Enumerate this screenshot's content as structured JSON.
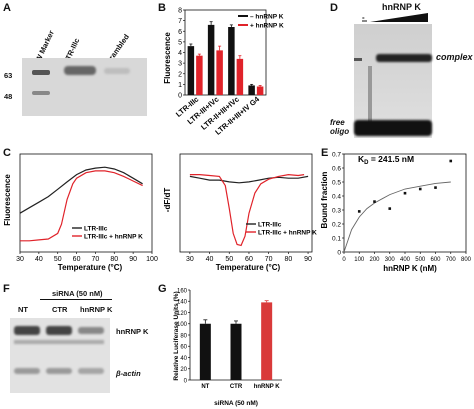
{
  "panels": {
    "A": {
      "label": "A",
      "lanes": [
        "MW Marker",
        "LTR-IIIc",
        "Scrambled"
      ],
      "markers": [
        "63",
        "48"
      ]
    },
    "B": {
      "label": "B",
      "ylabel": "Fluorescence",
      "chart_data": {
        "type": "bar",
        "categories": [
          "LTR-IIIc",
          "LTR-III+IVc",
          "LTR-II+III+IVc",
          "LTR-II+III+IV G4"
        ],
        "series": [
          {
            "name": "– hnRNP K",
            "color": "#111111",
            "values": [
              4.6,
              6.6,
              6.4,
              0.9
            ]
          },
          {
            "name": "+ hnRNP K",
            "color": "#e0232a",
            "values": [
              3.7,
              4.2,
              3.4,
              0.8
            ]
          }
        ],
        "errors": [
          [
            0.2,
            0.3,
            0.2,
            0.1
          ],
          [
            0.15,
            0.4,
            0.3,
            0.1
          ]
        ],
        "ylim": [
          0,
          8
        ],
        "yticks": [
          "0",
          "1",
          "2",
          "3",
          "4",
          "5",
          "6",
          "7",
          "8"
        ],
        "legend_placement": "top-right"
      }
    },
    "C": {
      "label": "C",
      "left": {
        "ylabel": "Fluorescence",
        "xlabel": "Temperature (°C)",
        "xticks": [
          "30",
          "40",
          "50",
          "60",
          "70",
          "80",
          "90",
          "100"
        ],
        "legend": [
          "LTR-IIIc",
          "LTR-IIIc + hnRNP K"
        ],
        "chart_data": {
          "type": "line",
          "xlim": [
            30,
            100
          ],
          "series": [
            {
              "name": "LTR-IIIc",
              "color": "#222222",
              "x": [
                30,
                35,
                40,
                45,
                50,
                55,
                60,
                65,
                70,
                75,
                80,
                85,
                90,
                95
              ],
              "y": [
                0.4,
                0.46,
                0.52,
                0.58,
                0.66,
                0.74,
                0.82,
                0.87,
                0.89,
                0.9,
                0.88,
                0.84,
                0.78,
                0.72
              ]
            },
            {
              "name": "LTR-IIIc + hnRNP K",
              "color": "#e0232a",
              "x": [
                30,
                35,
                40,
                45,
                50,
                52,
                55,
                58,
                60,
                65,
                70,
                75,
                80,
                85,
                90,
                95
              ],
              "y": [
                0.1,
                0.1,
                0.11,
                0.12,
                0.18,
                0.28,
                0.55,
                0.72,
                0.78,
                0.84,
                0.86,
                0.86,
                0.84,
                0.8,
                0.75,
                0.7
              ]
            }
          ]
        }
      },
      "right": {
        "ylabel": "-dF/dT",
        "xlabel": "Temperature (°C)",
        "xticks": [
          "30",
          "40",
          "50",
          "60",
          "70",
          "80",
          "90"
        ],
        "legend": [
          "LTR-IIIc",
          "LTR-IIIc + hnRNP K"
        ],
        "chart_data": {
          "type": "line",
          "xlim": [
            25,
            92
          ],
          "series": [
            {
              "name": "LTR-IIIc",
              "color": "#222222",
              "x": [
                30,
                35,
                40,
                45,
                50,
                55,
                60,
                65,
                70,
                75,
                80,
                85,
                90
              ],
              "y": [
                0.8,
                0.78,
                0.76,
                0.76,
                0.74,
                0.73,
                0.74,
                0.76,
                0.78,
                0.79,
                0.78,
                0.78,
                0.8
              ]
            },
            {
              "name": "LTR-IIIc + hnRNP K",
              "color": "#e0232a",
              "x": [
                30,
                35,
                40,
                45,
                48,
                50,
                52,
                54,
                56,
                58,
                60,
                63,
                66,
                70,
                75,
                80,
                85,
                88
              ],
              "y": [
                0.82,
                0.82,
                0.81,
                0.8,
                0.7,
                0.45,
                0.18,
                0.06,
                0.05,
                0.15,
                0.4,
                0.62,
                0.72,
                0.77,
                0.8,
                0.82,
                0.81,
                0.82
              ]
            }
          ]
        }
      }
    },
    "D": {
      "label": "D",
      "title": "hnRNP K",
      "lane_label": "-",
      "complex": "complex",
      "free": [
        "free",
        "oligo"
      ]
    },
    "E": {
      "label": "E",
      "kd": "K",
      "kd_sub": "D",
      "kd_value": " = 241.5 nM",
      "ylabel": "Bound fraction",
      "xlabel": "hnRNP K (nM)",
      "yticks": [
        "0",
        "0.1",
        "0.2",
        "0.3",
        "0.4",
        "0.5",
        "0.6",
        "0.7"
      ],
      "xticks": [
        "0",
        "100",
        "200",
        "300",
        "400",
        "500",
        "600",
        "700",
        "800"
      ],
      "chart_data": {
        "type": "scatter",
        "xlim": [
          0,
          800
        ],
        "ylim": [
          0,
          0.7
        ],
        "points": {
          "x": [
            100,
            200,
            300,
            400,
            500,
            600,
            700
          ],
          "y": [
            0.29,
            0.36,
            0.31,
            0.42,
            0.45,
            0.46,
            0.65
          ]
        },
        "fit": {
          "x": [
            0,
            50,
            100,
            150,
            200,
            250,
            300,
            400,
            500,
            600,
            700
          ],
          "y": [
            0.0,
            0.16,
            0.25,
            0.31,
            0.35,
            0.38,
            0.41,
            0.45,
            0.47,
            0.49,
            0.5
          ]
        }
      }
    },
    "F": {
      "label": "F",
      "sirna": "siRNA (50 nM)",
      "lanes": [
        "NT",
        "CTR",
        "hnRNP K"
      ],
      "bands": [
        "hnRNP K",
        "β-actin"
      ]
    },
    "G": {
      "label": "G",
      "ylabel": "Relative Luciferase Units (%)",
      "xlabel": "siRNA (50 nM)",
      "chart_data": {
        "type": "bar",
        "categories": [
          "NT",
          "CTR",
          "hnRNP K"
        ],
        "values": [
          100,
          100,
          138
        ],
        "errors": [
          7,
          5,
          3
        ],
        "ylim": [
          0,
          160
        ],
        "yticks": [
          "0",
          "20",
          "40",
          "60",
          "80",
          "100",
          "120",
          "140",
          "160"
        ]
      }
    }
  }
}
